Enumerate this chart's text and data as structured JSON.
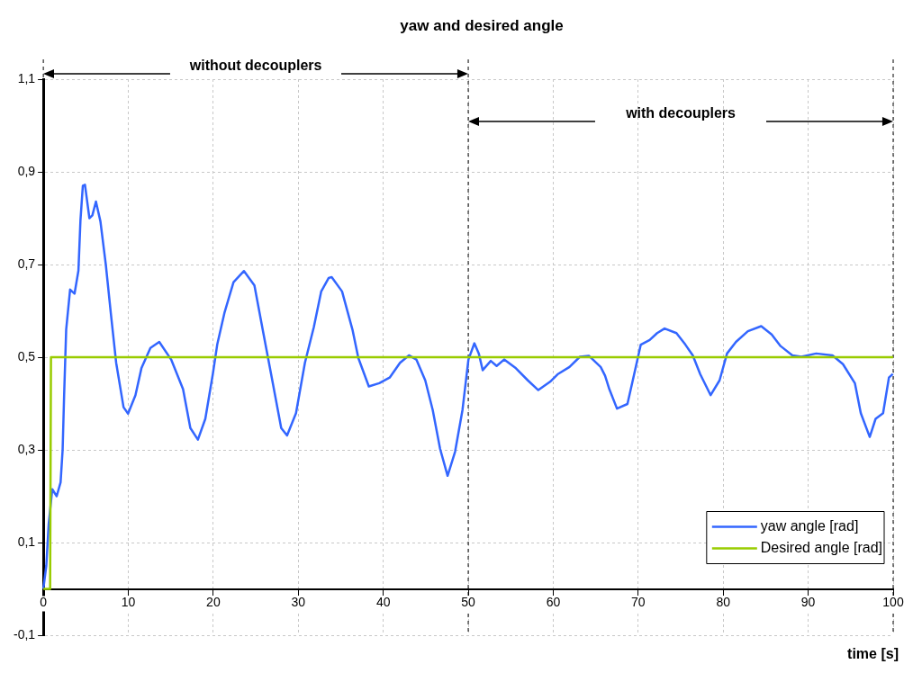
{
  "chart_data": {
    "type": "line",
    "title": "yaw and desired angle",
    "xlabel": "time [s]",
    "annotations": [
      "without decouplers",
      "with decouplers"
    ],
    "x": [
      0,
      0.35,
      0.63,
      0.77,
      1.05,
      1.57,
      2.03,
      2.27,
      2.45,
      2.69,
      3.15,
      3.67,
      4.13,
      4.37,
      4.65,
      4.9,
      5.42,
      5.77,
      6.19,
      6.72,
      7.35,
      7.97,
      8.57,
      9.44,
      9.97,
      10.84,
      11.54,
      12.6,
      13.64,
      15.04,
      16.44,
      17.3,
      18.19,
      19.06,
      19.94,
      20.46,
      21.33,
      22.38,
      23.61,
      24.84,
      25.89,
      26.94,
      27.99,
      28.68,
      29.73,
      30.78,
      31.83,
      32.7,
      33.58,
      33.93,
      35.15,
      36.38,
      37.07,
      38.3,
      39.53,
      40.75,
      41.97,
      43.02,
      43.89,
      44.94,
      45.82,
      46.69,
      47.57,
      48.45,
      49.32,
      50.02,
      50.72,
      51.24,
      51.7,
      52.65,
      53.34,
      54.22,
      55.61,
      57.01,
      58.24,
      59.63,
      60.51,
      61.91,
      63.14,
      64.19,
      65.58,
      66.1,
      66.6,
      67.5,
      68.73,
      69.43,
      70.3,
      71.35,
      72.22,
      73.1,
      74.5,
      75.55,
      76.42,
      77.3,
      78.52,
      79.57,
      80.45,
      81.5,
      82.9,
      84.47,
      85.7,
      86.75,
      88.14,
      89.19,
      90.94,
      92.86,
      94.09,
      95.49,
      96.19,
      97.24,
      97.93,
      98.81,
      99.5,
      99.96
    ],
    "series": [
      {
        "name": "yaw angle [rad]",
        "color": "#3366ff",
        "values": [
          0,
          0.05,
          0.14,
          0.165,
          0.215,
          0.2,
          0.23,
          0.3,
          0.42,
          0.56,
          0.646,
          0.637,
          0.687,
          0.796,
          0.87,
          0.872,
          0.8,
          0.806,
          0.836,
          0.793,
          0.7,
          0.59,
          0.488,
          0.392,
          0.378,
          0.418,
          0.476,
          0.52,
          0.533,
          0.495,
          0.431,
          0.347,
          0.322,
          0.367,
          0.463,
          0.527,
          0.597,
          0.662,
          0.686,
          0.655,
          0.552,
          0.45,
          0.347,
          0.331,
          0.379,
          0.488,
          0.565,
          0.642,
          0.671,
          0.673,
          0.642,
          0.559,
          0.498,
          0.437,
          0.444,
          0.456,
          0.488,
          0.504,
          0.495,
          0.45,
          0.386,
          0.302,
          0.244,
          0.296,
          0.386,
          0.495,
          0.53,
          0.508,
          0.472,
          0.492,
          0.481,
          0.495,
          0.476,
          0.45,
          0.429,
          0.447,
          0.463,
          0.479,
          0.501,
          0.503,
          0.479,
          0.46,
          0.431,
          0.389,
          0.399,
          0.456,
          0.527,
          0.537,
          0.552,
          0.562,
          0.552,
          0.527,
          0.504,
          0.463,
          0.418,
          0.45,
          0.508,
          0.533,
          0.556,
          0.567,
          0.549,
          0.524,
          0.504,
          0.501,
          0.508,
          0.504,
          0.485,
          0.444,
          0.379,
          0.328,
          0.367,
          0.379,
          0.456,
          0.464
        ]
      },
      {
        "name": "Desired angle [rad]",
        "color": "#99cc00",
        "x": [
          0,
          0.8,
          0.9,
          100
        ],
        "values": [
          0,
          0,
          0.5,
          0.5
        ]
      }
    ],
    "xlim": [
      0,
      100
    ],
    "xticks": [
      0,
      10,
      20,
      30,
      40,
      50,
      60,
      70,
      80,
      90,
      100
    ],
    "ylim": [
      -0.1,
      1.1
    ],
    "yticks": [
      {
        "value": -0.1,
        "label": "-0,1"
      },
      {
        "value": 0.1,
        "label": "0,1"
      },
      {
        "value": 0.3,
        "label": "0,3"
      },
      {
        "value": 0.5,
        "label": "0,5"
      },
      {
        "value": 0.7,
        "label": "0,7"
      },
      {
        "value": 0.9,
        "label": "0,9"
      },
      {
        "value": 1.1,
        "label": "1,1"
      }
    ],
    "ref_lines": [
      {
        "axis": "x",
        "value": 0,
        "color": "#000000",
        "line_style": "dashed"
      },
      {
        "axis": "x",
        "value": 50,
        "color": "#000000",
        "line_style": "dashed"
      },
      {
        "axis": "x",
        "value": 100,
        "color": "#000000",
        "line_style": "dashed"
      }
    ],
    "grid": true,
    "legend": "bottom right",
    "marker": "none",
    "line_style": "solid"
  }
}
